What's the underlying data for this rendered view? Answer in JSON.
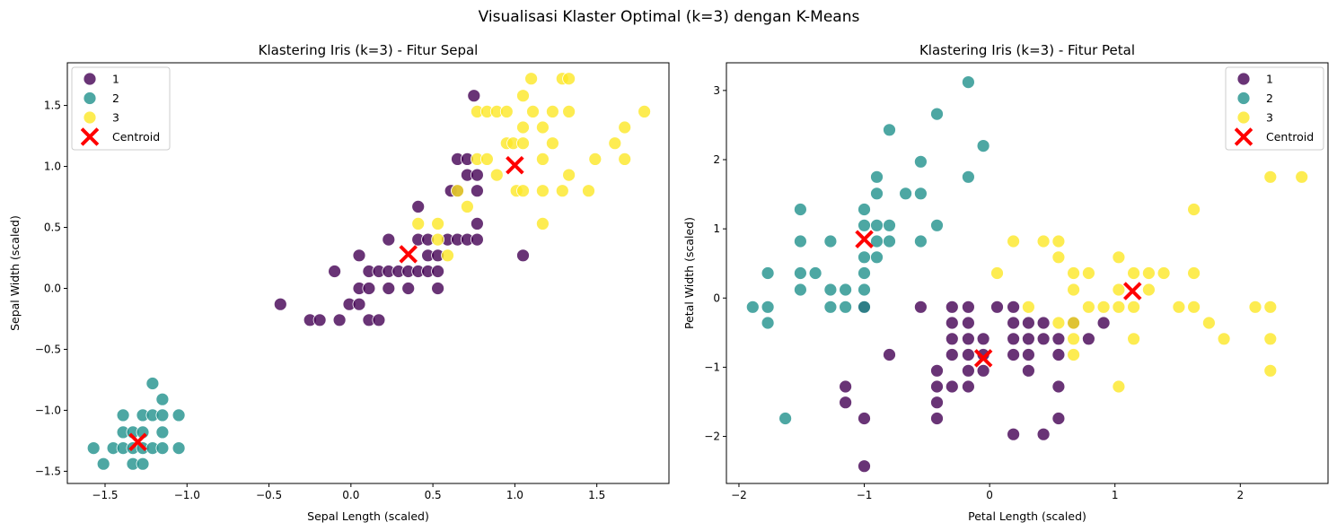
{
  "suptitle": "Visualisasi Klaster Optimal (k=3) dengan K-Means",
  "colors": {
    "1": "#440154",
    "2": "#21918c",
    "3": "#fde725",
    "centroid": "#ff0000"
  },
  "chart_data": [
    {
      "type": "scatter",
      "title": "Klastering Iris (k=3) - Fitur Sepal",
      "xlabel": "Sepal Length (scaled)",
      "ylabel": "Sepal Width (scaled)",
      "xlim": [
        -1.73,
        1.94
      ],
      "ylim": [
        -1.6,
        1.85
      ],
      "xticks": [
        -1.5,
        -1.0,
        -0.5,
        0.0,
        0.5,
        1.0,
        1.5
      ],
      "xtick_labels": [
        "−1.5",
        "−1.0",
        "−0.5",
        "0.0",
        "0.5",
        "1.0",
        "1.5"
      ],
      "yticks": [
        -1.5,
        -1.0,
        -0.5,
        0.0,
        0.5,
        1.0,
        1.5
      ],
      "ytick_labels": [
        "−1.5",
        "−1.0",
        "−0.5",
        "0.0",
        "0.5",
        "1.0",
        "1.5"
      ],
      "legend_position": "top-left",
      "legend": [
        "1",
        "2",
        "3",
        "Centroid"
      ],
      "series": [
        {
          "name": "1",
          "points": [
            [
              -0.43,
              -0.13
            ],
            [
              -0.25,
              -0.26
            ],
            [
              -0.19,
              -0.26
            ],
            [
              -0.07,
              -0.26
            ],
            [
              -0.01,
              -0.13
            ],
            [
              0.05,
              -0.13
            ],
            [
              0.11,
              -0.26
            ],
            [
              0.17,
              -0.26
            ],
            [
              -0.1,
              0.14
            ],
            [
              0.05,
              0.0
            ],
            [
              0.11,
              0.0
            ],
            [
              0.23,
              0.0
            ],
            [
              0.35,
              0.0
            ],
            [
              0.53,
              0.0
            ],
            [
              0.05,
              0.27
            ],
            [
              0.11,
              0.14
            ],
            [
              0.17,
              0.14
            ],
            [
              0.23,
              0.14
            ],
            [
              0.29,
              0.14
            ],
            [
              0.35,
              0.14
            ],
            [
              0.41,
              0.14
            ],
            [
              0.47,
              0.14
            ],
            [
              0.53,
              0.14
            ],
            [
              0.23,
              0.4
            ],
            [
              0.41,
              0.4
            ],
            [
              0.47,
              0.4
            ],
            [
              0.41,
              0.67
            ],
            [
              0.47,
              0.27
            ],
            [
              0.53,
              0.27
            ],
            [
              0.59,
              0.4
            ],
            [
              0.65,
              0.4
            ],
            [
              0.71,
              0.4
            ],
            [
              0.77,
              0.4
            ],
            [
              0.61,
              0.8
            ],
            [
              0.65,
              0.8
            ],
            [
              0.77,
              0.8
            ],
            [
              0.65,
              1.06
            ],
            [
              0.71,
              1.06
            ],
            [
              0.71,
              0.93
            ],
            [
              0.77,
              0.93
            ],
            [
              0.77,
              0.53
            ],
            [
              0.75,
              1.58
            ],
            [
              1.05,
              0.27
            ]
          ]
        },
        {
          "name": "2",
          "points": [
            [
              -1.57,
              -1.31
            ],
            [
              -1.51,
              -1.44
            ],
            [
              -1.45,
              -1.31
            ],
            [
              -1.39,
              -1.31
            ],
            [
              -1.39,
              -1.18
            ],
            [
              -1.39,
              -1.04
            ],
            [
              -1.33,
              -1.31
            ],
            [
              -1.33,
              -1.18
            ],
            [
              -1.33,
              -1.44
            ],
            [
              -1.27,
              -1.44
            ],
            [
              -1.27,
              -1.31
            ],
            [
              -1.27,
              -1.18
            ],
            [
              -1.27,
              -1.04
            ],
            [
              -1.21,
              -1.31
            ],
            [
              -1.21,
              -1.04
            ],
            [
              -1.21,
              -0.78
            ],
            [
              -1.15,
              -1.31
            ],
            [
              -1.15,
              -1.18
            ],
            [
              -1.15,
              -1.04
            ],
            [
              -1.15,
              -0.91
            ],
            [
              -1.05,
              -1.04
            ],
            [
              -1.05,
              -1.31
            ]
          ]
        },
        {
          "name": "3",
          "points": [
            [
              0.41,
              0.53
            ],
            [
              0.53,
              0.53
            ],
            [
              0.53,
              0.4
            ],
            [
              0.59,
              0.27
            ],
            [
              0.65,
              0.8
            ],
            [
              0.71,
              0.67
            ],
            [
              0.77,
              1.06
            ],
            [
              0.83,
              1.06
            ],
            [
              0.77,
              1.45
            ],
            [
              0.83,
              1.45
            ],
            [
              0.89,
              1.45
            ],
            [
              0.95,
              1.45
            ],
            [
              0.89,
              0.93
            ],
            [
              0.95,
              1.19
            ],
            [
              0.99,
              1.19
            ],
            [
              1.01,
              0.8
            ],
            [
              1.05,
              1.19
            ],
            [
              1.05,
              0.8
            ],
            [
              1.05,
              1.32
            ],
            [
              1.05,
              1.58
            ],
            [
              1.1,
              1.72
            ],
            [
              1.11,
              1.45
            ],
            [
              1.17,
              1.32
            ],
            [
              1.17,
              1.06
            ],
            [
              1.17,
              0.8
            ],
            [
              1.23,
              1.45
            ],
            [
              1.23,
              1.19
            ],
            [
              1.17,
              0.53
            ],
            [
              1.29,
              1.72
            ],
            [
              1.33,
              1.72
            ],
            [
              1.33,
              1.45
            ],
            [
              1.33,
              0.93
            ],
            [
              1.29,
              0.8
            ],
            [
              1.45,
              0.8
            ],
            [
              1.49,
              1.06
            ],
            [
              1.61,
              1.19
            ],
            [
              1.67,
              1.32
            ],
            [
              1.67,
              1.06
            ],
            [
              1.79,
              1.45
            ]
          ]
        }
      ],
      "centroids": [
        [
          0.35,
          0.28
        ],
        [
          -1.3,
          -1.26
        ],
        [
          1.0,
          1.01
        ]
      ]
    },
    {
      "type": "scatter",
      "title": "Klastering Iris (k=3) - Fitur Petal",
      "xlabel": "Petal Length (scaled)",
      "ylabel": "Petal Width (scaled)",
      "xlim": [
        -2.1,
        2.7
      ],
      "ylim": [
        -2.68,
        3.4
      ],
      "xticks": [
        -2,
        -1,
        0,
        1,
        2
      ],
      "xtick_labels": [
        "−2",
        "−1",
        "0",
        "1",
        "2"
      ],
      "yticks": [
        -2,
        -1,
        0,
        1,
        2,
        3
      ],
      "ytick_labels": [
        "−2",
        "−1",
        "0",
        "1",
        "2",
        "3"
      ],
      "legend_position": "top-right",
      "legend": [
        "1",
        "2",
        "3",
        "Centroid"
      ],
      "series": [
        {
          "name": "1",
          "points": [
            [
              -1.0,
              -2.43
            ],
            [
              -1.15,
              -1.28
            ],
            [
              -1.15,
              -1.51
            ],
            [
              -1.0,
              -1.74
            ],
            [
              -0.8,
              -0.82
            ],
            [
              -0.55,
              -0.13
            ],
            [
              -0.42,
              -1.05
            ],
            [
              -0.42,
              -1.28
            ],
            [
              -0.42,
              -1.51
            ],
            [
              -0.42,
              -1.74
            ],
            [
              -0.3,
              -0.13
            ],
            [
              -0.3,
              -0.36
            ],
            [
              -0.3,
              -0.59
            ],
            [
              -0.3,
              -0.82
            ],
            [
              -0.3,
              -1.28
            ],
            [
              -0.17,
              -0.13
            ],
            [
              -0.17,
              -0.36
            ],
            [
              -0.17,
              -0.59
            ],
            [
              -0.17,
              -0.82
            ],
            [
              -0.17,
              -1.05
            ],
            [
              -0.17,
              -1.28
            ],
            [
              -0.05,
              -0.59
            ],
            [
              -0.05,
              -0.82
            ],
            [
              -0.05,
              -1.05
            ],
            [
              0.06,
              -0.13
            ],
            [
              0.19,
              -0.13
            ],
            [
              0.19,
              -0.36
            ],
            [
              0.19,
              -0.59
            ],
            [
              0.19,
              -0.82
            ],
            [
              0.19,
              -1.97
            ],
            [
              0.31,
              -0.36
            ],
            [
              0.31,
              -0.59
            ],
            [
              0.31,
              -0.82
            ],
            [
              0.31,
              -1.05
            ],
            [
              0.43,
              -0.36
            ],
            [
              0.43,
              -0.59
            ],
            [
              0.43,
              -1.97
            ],
            [
              0.55,
              -0.59
            ],
            [
              0.55,
              -0.82
            ],
            [
              0.55,
              -1.28
            ],
            [
              0.55,
              -1.74
            ],
            [
              0.67,
              -0.36
            ],
            [
              0.79,
              -0.59
            ],
            [
              0.91,
              -0.36
            ],
            [
              -1.0,
              -0.13
            ]
          ]
        },
        {
          "name": "2",
          "points": [
            [
              -1.89,
              -0.13
            ],
            [
              -1.77,
              -0.13
            ],
            [
              -1.77,
              0.36
            ],
            [
              -1.77,
              -0.36
            ],
            [
              -1.63,
              -1.74
            ],
            [
              -1.51,
              1.28
            ],
            [
              -1.51,
              0.82
            ],
            [
              -1.51,
              0.36
            ],
            [
              -1.51,
              0.12
            ],
            [
              -1.39,
              0.36
            ],
            [
              -1.27,
              0.82
            ],
            [
              -1.27,
              0.12
            ],
            [
              -1.27,
              -0.13
            ],
            [
              -1.15,
              0.12
            ],
            [
              -1.15,
              -0.13
            ],
            [
              -1.0,
              1.28
            ],
            [
              -1.0,
              1.05
            ],
            [
              -1.0,
              0.59
            ],
            [
              -1.0,
              0.36
            ],
            [
              -1.0,
              0.12
            ],
            [
              -1.0,
              -0.13
            ],
            [
              -0.9,
              1.75
            ],
            [
              -0.9,
              1.51
            ],
            [
              -0.9,
              1.05
            ],
            [
              -0.9,
              0.82
            ],
            [
              -0.9,
              0.59
            ],
            [
              -0.8,
              2.43
            ],
            [
              -0.8,
              1.05
            ],
            [
              -0.8,
              0.82
            ],
            [
              -0.67,
              1.51
            ],
            [
              -0.55,
              1.97
            ],
            [
              -0.55,
              1.51
            ],
            [
              -0.55,
              0.82
            ],
            [
              -0.42,
              2.66
            ],
            [
              -0.42,
              1.05
            ],
            [
              -0.17,
              3.12
            ],
            [
              -0.17,
              1.75
            ],
            [
              -0.05,
              2.2
            ]
          ]
        },
        {
          "name": "3",
          "points": [
            [
              0.06,
              0.36
            ],
            [
              0.19,
              0.82
            ],
            [
              0.31,
              -0.13
            ],
            [
              0.43,
              0.82
            ],
            [
              0.55,
              0.82
            ],
            [
              0.55,
              0.59
            ],
            [
              0.55,
              -0.36
            ],
            [
              0.67,
              0.36
            ],
            [
              0.67,
              0.12
            ],
            [
              0.67,
              -0.36
            ],
            [
              0.67,
              -0.59
            ],
            [
              0.67,
              -0.82
            ],
            [
              0.79,
              0.36
            ],
            [
              0.79,
              -0.13
            ],
            [
              0.91,
              -0.13
            ],
            [
              1.03,
              0.59
            ],
            [
              1.03,
              0.12
            ],
            [
              1.03,
              -0.13
            ],
            [
              1.03,
              -1.28
            ],
            [
              1.15,
              0.36
            ],
            [
              1.15,
              -0.13
            ],
            [
              1.15,
              -0.59
            ],
            [
              1.27,
              0.36
            ],
            [
              1.27,
              0.12
            ],
            [
              1.39,
              0.36
            ],
            [
              1.51,
              -0.13
            ],
            [
              1.63,
              1.28
            ],
            [
              1.63,
              0.36
            ],
            [
              1.63,
              -0.13
            ],
            [
              1.75,
              -0.36
            ],
            [
              1.87,
              -0.59
            ],
            [
              2.12,
              -0.13
            ],
            [
              2.24,
              1.75
            ],
            [
              2.24,
              -0.13
            ],
            [
              2.24,
              -0.59
            ],
            [
              2.24,
              -1.05
            ],
            [
              2.49,
              1.75
            ]
          ]
        }
      ],
      "centroids": [
        [
          -0.05,
          -0.87
        ],
        [
          -1.0,
          0.85
        ],
        [
          1.14,
          0.1
        ]
      ]
    }
  ]
}
